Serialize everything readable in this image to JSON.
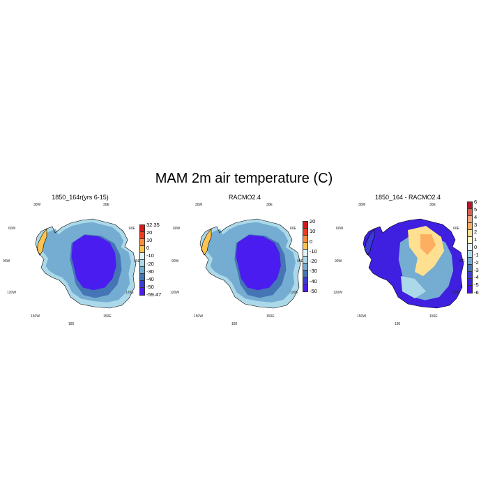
{
  "title": "MAM 2m air temperature (C)",
  "panels": [
    {
      "title": "1850_164r(yrs 6-15)",
      "field": "mean",
      "lon_labels": {
        "w30": "30W",
        "e30": "30E",
        "w60": "60W",
        "e60": "60E",
        "w90": "90W",
        "e90": "90E",
        "w120": "120W",
        "e120": "120E",
        "w150": "150W",
        "e150": "150E",
        "s180": "180"
      },
      "colorbar": {
        "labels": [
          "32.35",
          "20",
          "10",
          "0",
          "-10",
          "-20",
          "-30",
          "-40",
          "-50",
          "-59.47"
        ],
        "colors": [
          "#d7191c",
          "#f03b20",
          "#fd8d3c",
          "#fec44f",
          "#e0f3f8",
          "#abd9e9",
          "#74add1",
          "#4575b4",
          "#3b3bd6",
          "#4a1cf0"
        ]
      }
    },
    {
      "title": "RACMO2.4",
      "field": "mean",
      "lon_labels": {
        "w30": "30W",
        "e30": "30E",
        "w60": "60W",
        "e60": "60E",
        "w90": "90W",
        "e90": "90E",
        "w120": "120W",
        "e120": "120E",
        "w150": "150W",
        "e150": "150E",
        "s180": "180"
      },
      "colorbar": {
        "labels": [
          "20",
          "10",
          "0",
          "-10",
          "-20",
          "-30",
          "-40",
          "-50"
        ],
        "colors": [
          "#d7191c",
          "#f03b20",
          "#fd8d3c",
          "#fec44f",
          "#e0f3f8",
          "#abd9e9",
          "#74add1",
          "#4575b4",
          "#3b3bd6",
          "#4a1cf0"
        ]
      }
    },
    {
      "title": "1850_164 - RACMO2.4",
      "field": "diff",
      "lon_labels": {
        "w30": "30W",
        "e30": "30E",
        "w60": "60W",
        "e60": "60E",
        "w90": "90W",
        "e90": "90E",
        "w120": "120W",
        "e120": "120E",
        "w150": "150W",
        "e150": "150E",
        "s180": "180"
      },
      "colorbar": {
        "labels": [
          "6",
          "5",
          "4",
          "3",
          "2",
          "1",
          "0",
          "-1",
          "-2",
          "-3",
          "-4",
          "-5",
          "-6"
        ],
        "colors": [
          "#b2182b",
          "#d6604d",
          "#f4a582",
          "#fdae61",
          "#fee090",
          "#ffffbf",
          "#e0f3f8",
          "#abd9e9",
          "#74add1",
          "#4575b4",
          "#3b3bd6",
          "#3f1fe0",
          "#4a10f0"
        ]
      }
    }
  ]
}
